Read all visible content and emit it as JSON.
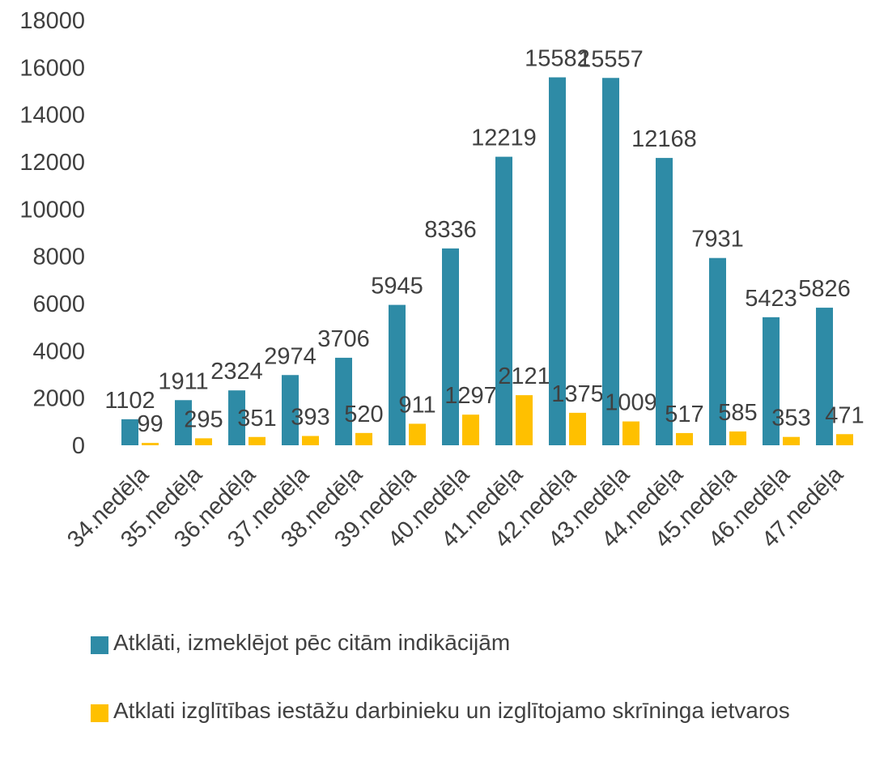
{
  "chart_data": {
    "type": "bar",
    "categories": [
      "34.nedēļa",
      "35.nedēļa",
      "36.nedēļa",
      "37.nedēļa",
      "38.nedēļa",
      "39.nedēļa",
      "40.nedēļa",
      "41.nedēļa",
      "42.nedēļa",
      "43.nedēļa",
      "44.nedēļa",
      "45.nedēļa",
      "46.nedēļa",
      "47.nedēļa"
    ],
    "series": [
      {
        "name": "Atklāti, izmeklējot pēc citām indikācijām",
        "color": "#2e8ba6",
        "values": [
          1102,
          1911,
          2324,
          2974,
          3706,
          5945,
          8336,
          12219,
          15582,
          15557,
          12168,
          7931,
          5423,
          5826
        ]
      },
      {
        "name": "Atklati izglītības iestāžu darbinieku un izglītojamo skrīninga ietvaros",
        "color": "#ffc000",
        "values": [
          99,
          295,
          351,
          393,
          520,
          911,
          1297,
          2121,
          1375,
          1009,
          517,
          585,
          353,
          471
        ]
      }
    ],
    "ylim": [
      0,
      18000
    ],
    "yticks": [
      0,
      2000,
      4000,
      6000,
      8000,
      10000,
      12000,
      14000,
      16000,
      18000
    ],
    "grid": false,
    "legend": "bottom"
  }
}
